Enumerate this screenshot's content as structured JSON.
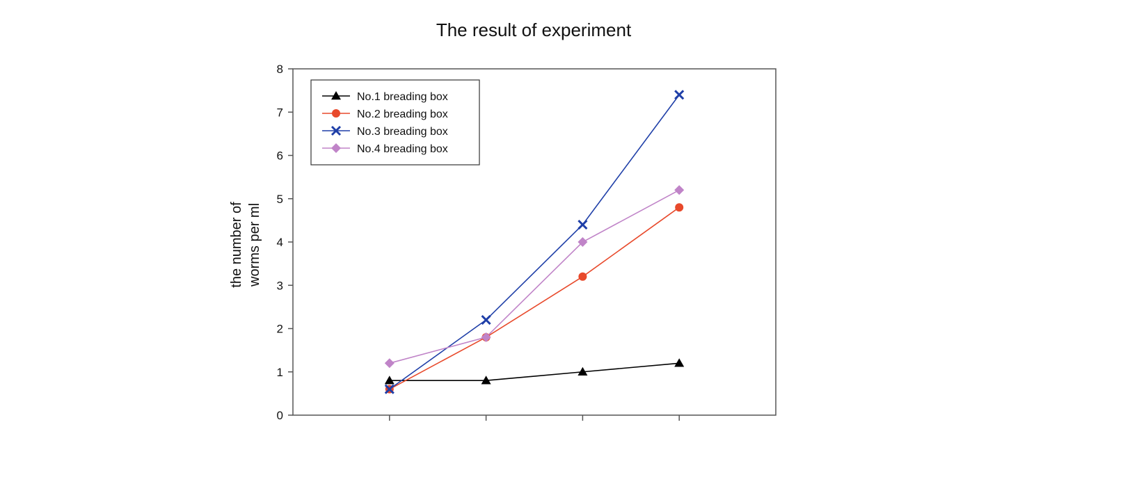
{
  "chart_data": {
    "type": "line",
    "title": "The result of experiment",
    "xlabel": "",
    "ylabel_lines": [
      "the number of",
      "worms per ml"
    ],
    "x": [
      1,
      2,
      3,
      4
    ],
    "xlim": [
      0,
      5
    ],
    "ylim": [
      0,
      8
    ],
    "yticks": [
      0,
      1,
      2,
      3,
      4,
      5,
      6,
      7,
      8
    ],
    "grid": false,
    "legend_position": "top-left",
    "series": [
      {
        "name": "No.1 breading box",
        "values": [
          0.8,
          0.8,
          1.0,
          1.2
        ],
        "color": "#000000",
        "marker": "triangle"
      },
      {
        "name": "No.2 breading box",
        "values": [
          0.6,
          1.8,
          3.2,
          4.8
        ],
        "color": "#e8492b",
        "marker": "circle"
      },
      {
        "name": "No.3 breading box",
        "values": [
          0.6,
          2.2,
          4.4,
          7.4
        ],
        "color": "#1f3fa8",
        "marker": "x"
      },
      {
        "name": "No.4 breading box",
        "values": [
          1.2,
          1.8,
          4.0,
          5.2
        ],
        "color": "#c084c8",
        "marker": "diamond"
      }
    ]
  }
}
